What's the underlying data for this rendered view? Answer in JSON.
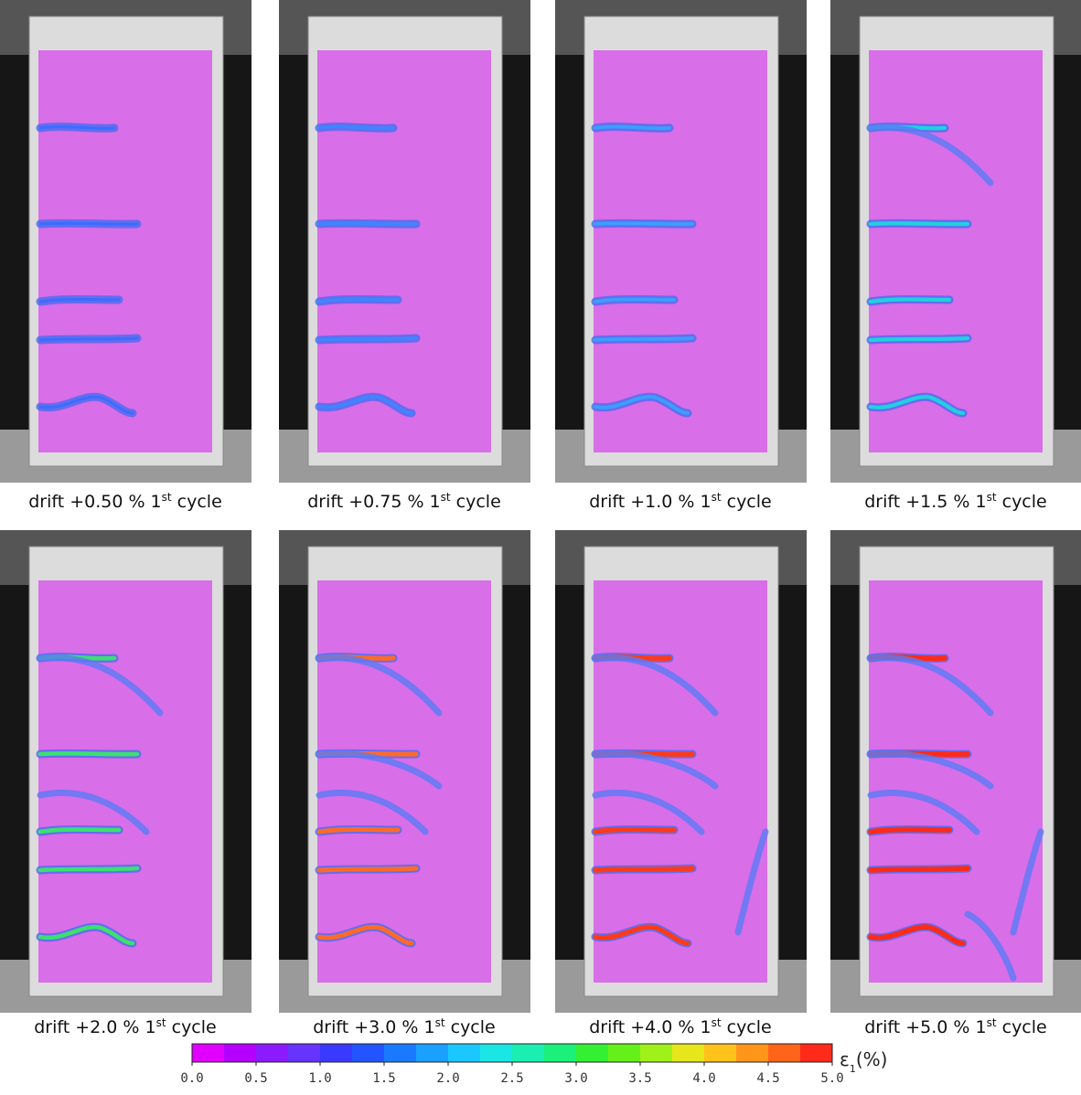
{
  "panels": [
    {
      "caption": "drift +0.50 % 1",
      "sup": "st",
      "suffix": " cycle"
    },
    {
      "caption": "drift +0.75 % 1",
      "sup": "st",
      "suffix": " cycle"
    },
    {
      "caption": "drift +1.0 % 1",
      "sup": "st",
      "suffix": " cycle"
    },
    {
      "caption": "drift +1.5 % 1",
      "sup": "st",
      "suffix": " cycle"
    },
    {
      "caption": "drift +2.0 % 1",
      "sup": "st",
      "suffix": " cycle"
    },
    {
      "caption": "drift +3.0 % 1",
      "sup": "st",
      "suffix": " cycle"
    },
    {
      "caption": "drift +4.0 % 1",
      "sup": "st",
      "suffix": " cycle"
    },
    {
      "caption": "drift +5.0 % 1",
      "sup": "st",
      "suffix": " cycle"
    }
  ],
  "colorbar": {
    "ticks": [
      "0.0",
      "0.5",
      "1.0",
      "1.5",
      "2.0",
      "2.5",
      "3.0",
      "3.5",
      "4.0",
      "4.5",
      "5.0"
    ],
    "label": "ε",
    "label_sub": "1",
    "label_suffix": "(%)",
    "colors": [
      "#e100ff",
      "#b300ff",
      "#8c1aff",
      "#6633ff",
      "#3a3aff",
      "#2255ff",
      "#1a7aff",
      "#1aa0ff",
      "#1ac8ff",
      "#1ae6e6",
      "#1aeeb0",
      "#1af07a",
      "#33f033",
      "#66f01a",
      "#a0f01a",
      "#e6e61a",
      "#ffc21a",
      "#ff961a",
      "#ff641a",
      "#ff2a1a"
    ]
  }
}
